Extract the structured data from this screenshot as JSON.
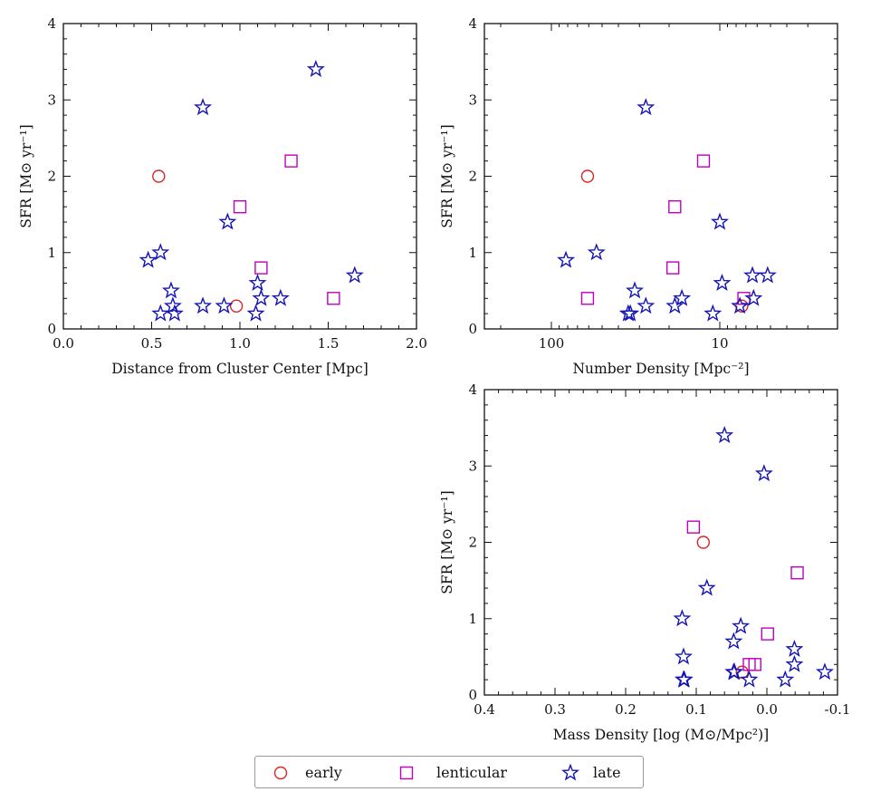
{
  "colors": {
    "early": "#d62728",
    "lenticular": "#bf00bf",
    "late": "#1414b4",
    "axis": "#111111"
  },
  "legend": {
    "placement": "bottom-center",
    "entries": [
      {
        "key": "early",
        "label": "early",
        "marker": "circle"
      },
      {
        "key": "lenticular",
        "label": "lenticular",
        "marker": "square"
      },
      {
        "key": "late",
        "label": "late",
        "marker": "star"
      }
    ]
  },
  "chart_data": [
    {
      "id": "distance",
      "type": "scatter",
      "title": "",
      "xlabel": "Distance from Cluster Center [Mpc]",
      "ylabel": "SFR [M⊙ yr⁻¹]",
      "xscale": "linear",
      "xlim": [
        0.0,
        2.0
      ],
      "ylim": [
        0,
        4
      ],
      "xticks": [
        0.0,
        0.5,
        1.0,
        1.5,
        2.0
      ],
      "xticklabels": [
        "0.0",
        "0.5",
        "1.0",
        "1.5",
        "2.0"
      ],
      "yticks": [
        0,
        1,
        2,
        3,
        4
      ],
      "yticklabels": [
        "0",
        "1",
        "2",
        "3",
        "4"
      ],
      "grid": false,
      "series": [
        {
          "name": "early",
          "marker": "circle",
          "points": [
            [
              0.54,
              2.0
            ],
            [
              0.98,
              0.3
            ]
          ]
        },
        {
          "name": "lenticular",
          "marker": "square",
          "points": [
            [
              1.29,
              2.2
            ],
            [
              1.0,
              1.6
            ],
            [
              1.12,
              0.8
            ],
            [
              1.53,
              0.4
            ]
          ]
        },
        {
          "name": "late",
          "marker": "star",
          "points": [
            [
              1.43,
              3.4
            ],
            [
              0.79,
              2.9
            ],
            [
              0.93,
              1.4
            ],
            [
              0.55,
              1.0
            ],
            [
              0.48,
              0.9
            ],
            [
              1.65,
              0.7
            ],
            [
              1.1,
              0.6
            ],
            [
              0.61,
              0.5
            ],
            [
              1.12,
              0.4
            ],
            [
              1.23,
              0.4
            ],
            [
              0.79,
              0.3
            ],
            [
              0.91,
              0.3
            ],
            [
              0.62,
              0.3
            ],
            [
              0.55,
              0.2
            ],
            [
              0.63,
              0.2
            ],
            [
              1.09,
              0.2
            ]
          ]
        }
      ]
    },
    {
      "id": "number-density",
      "type": "scatter",
      "title": "",
      "xlabel": "Number Density [Mpc⁻²]",
      "ylabel": "SFR [M⊙ yr⁻¹]",
      "xscale": "log-reversed",
      "xlim": [
        250,
        2
      ],
      "ylim": [
        0,
        4
      ],
      "xticks": [
        100,
        10
      ],
      "xticklabels": [
        "100",
        "10"
      ],
      "yticks": [
        0,
        1,
        2,
        3,
        4
      ],
      "yticklabels": [
        "0",
        "1",
        "2",
        "3",
        "4"
      ],
      "grid": false,
      "series": [
        {
          "name": "early",
          "marker": "circle",
          "points": [
            [
              61,
              2.0
            ],
            [
              7.4,
              0.3
            ]
          ]
        },
        {
          "name": "lenticular",
          "marker": "square",
          "points": [
            [
              12.5,
              2.2
            ],
            [
              18.5,
              1.6
            ],
            [
              19,
              0.8
            ],
            [
              61,
              0.4
            ],
            [
              7.2,
              0.4
            ]
          ]
        },
        {
          "name": "late",
          "marker": "star",
          "points": [
            [
              27.5,
              2.9
            ],
            [
              10,
              1.4
            ],
            [
              54,
              1.0
            ],
            [
              82,
              0.9
            ],
            [
              6.4,
              0.7
            ],
            [
              5.2,
              0.7
            ],
            [
              9.7,
              0.6
            ],
            [
              32,
              0.5
            ],
            [
              16.8,
              0.4
            ],
            [
              6.3,
              0.4
            ],
            [
              27.5,
              0.3
            ],
            [
              18.5,
              0.3
            ],
            [
              7.6,
              0.3
            ],
            [
              35,
              0.2
            ],
            [
              34,
              0.2
            ],
            [
              11,
              0.2
            ]
          ]
        }
      ]
    },
    {
      "id": "mass-density",
      "type": "scatter",
      "title": "",
      "xlabel": "Mass Density [log (M⊙/Mpc²)]",
      "ylabel": "SFR [M⊙ yr⁻¹]",
      "xscale": "linear-reversed",
      "xlim": [
        0.4,
        -0.1
      ],
      "ylim": [
        0,
        4
      ],
      "xticks": [
        0.4,
        0.3,
        0.2,
        0.1,
        0.0,
        -0.1
      ],
      "xticklabels": [
        "0.4",
        "0.3",
        "0.2",
        "0.1",
        "0.0",
        "-0.1"
      ],
      "yticks": [
        0,
        1,
        2,
        3,
        4
      ],
      "yticklabels": [
        "0",
        "1",
        "2",
        "3",
        "4"
      ],
      "grid": false,
      "series": [
        {
          "name": "early",
          "marker": "circle",
          "points": [
            [
              0.09,
              2.0
            ],
            [
              0.035,
              0.3
            ]
          ]
        },
        {
          "name": "lenticular",
          "marker": "square",
          "points": [
            [
              0.104,
              2.2
            ],
            [
              -0.043,
              1.6
            ],
            [
              -0.001,
              0.8
            ],
            [
              0.025,
              0.4
            ],
            [
              0.017,
              0.4
            ]
          ]
        },
        {
          "name": "late",
          "marker": "star",
          "points": [
            [
              0.06,
              3.4
            ],
            [
              0.004,
              2.9
            ],
            [
              0.085,
              1.4
            ],
            [
              0.12,
              1.0
            ],
            [
              0.037,
              0.9
            ],
            [
              0.047,
              0.7
            ],
            [
              -0.039,
              0.6
            ],
            [
              0.118,
              0.5
            ],
            [
              -0.039,
              0.4
            ],
            [
              0.047,
              0.3
            ],
            [
              0.046,
              0.3
            ],
            [
              -0.082,
              0.3
            ],
            [
              0.025,
              0.2
            ],
            [
              -0.026,
              0.2
            ],
            [
              0.118,
              0.2
            ],
            [
              0.117,
              0.2
            ]
          ]
        }
      ]
    }
  ]
}
